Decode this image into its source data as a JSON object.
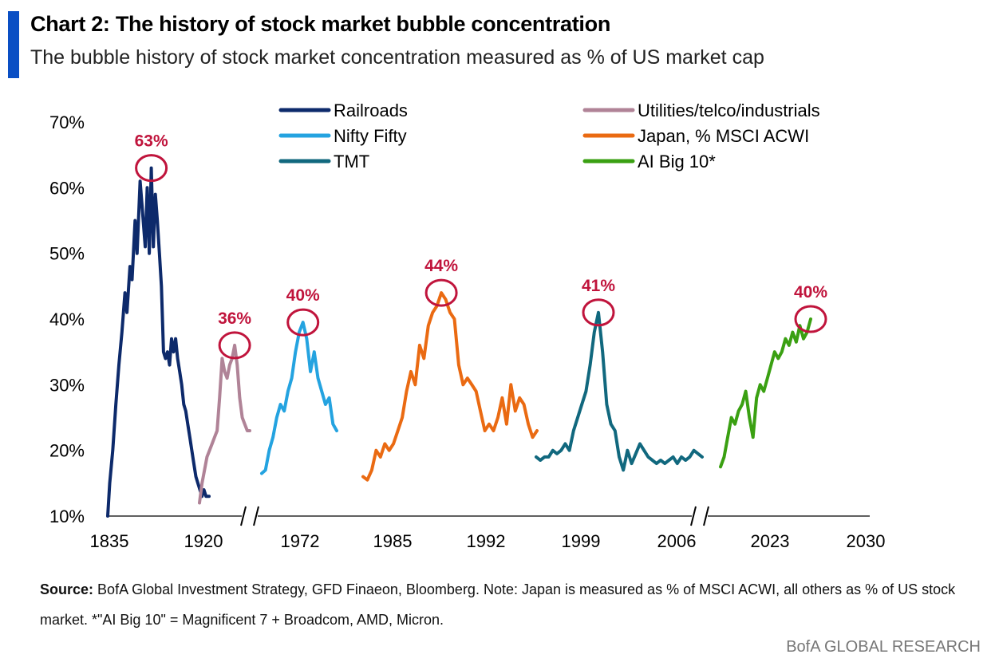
{
  "header": {
    "title": "Chart 2: The history of stock market bubble concentration",
    "subtitle": "The bubble history of stock market concentration measured as % of US market cap"
  },
  "footer": {
    "source_label": "Source:",
    "source_text": "BofA Global Investment Strategy, GFD Finaeon, Bloomberg. Note: Japan is measured as % of MSCI ACWI, all others as % of US stock market. *\"AI Big 10\" = Magnificent 7 + Broadcom, AMD, Micron.",
    "brand": "BofA GLOBAL RESEARCH"
  },
  "chart_data": {
    "type": "line",
    "ylim": [
      10,
      70
    ],
    "y_ticks": [
      "10%",
      "20%",
      "30%",
      "40%",
      "50%",
      "60%",
      "70%"
    ],
    "x_ticks": [
      "1835",
      "1920",
      "1972",
      "1985",
      "1992",
      "1999",
      "2006",
      "2023",
      "2030"
    ],
    "axis_breaks": 2,
    "grid": false,
    "legend_position": "top",
    "peak_color": "#c0143c",
    "series": [
      {
        "name": "Railroads",
        "color": "#0d2a6b",
        "x": [
          0,
          0.02,
          0.05,
          0.08,
          0.11,
          0.14,
          0.17,
          0.19,
          0.22,
          0.24,
          0.27,
          0.29,
          0.32,
          0.34,
          0.37,
          0.39,
          0.41,
          0.43,
          0.45,
          0.47,
          0.49,
          0.51,
          0.53,
          0.55,
          0.57,
          0.59,
          0.61,
          0.63,
          0.65,
          0.67,
          0.69,
          0.71,
          0.73,
          0.75,
          0.77,
          0.79,
          0.81,
          0.83,
          0.85,
          0.87,
          0.89,
          0.91,
          0.93,
          0.95,
          0.97,
          1
        ],
        "y": [
          10,
          15,
          20,
          27,
          33,
          38,
          44,
          41,
          48,
          46,
          55,
          50,
          61,
          57,
          51,
          60,
          50,
          63,
          51,
          59,
          55,
          50,
          45,
          35,
          34,
          35,
          33,
          37,
          35,
          37,
          34,
          32,
          30,
          27,
          26,
          24,
          22,
          20,
          18,
          16,
          15,
          14,
          13,
          14,
          13,
          13
        ]
      },
      {
        "name": "Utilities/telco/industrials",
        "color": "#b08397",
        "x": [
          0,
          0.05,
          0.1,
          0.15,
          0.2,
          0.25,
          0.3,
          0.35,
          0.4,
          0.45,
          0.5,
          0.55,
          0.6,
          0.65,
          0.7,
          0.75,
          0.8,
          0.85,
          0.9,
          0.95,
          1
        ],
        "y": [
          12,
          15,
          17,
          19,
          20,
          21,
          22,
          23,
          28,
          34,
          32,
          31,
          33,
          34,
          36,
          33,
          28,
          25,
          24,
          23,
          23
        ]
      },
      {
        "name": "Nifty Fifty",
        "color": "#24a3e0",
        "x": [
          0,
          0.05,
          0.1,
          0.15,
          0.2,
          0.25,
          0.3,
          0.35,
          0.4,
          0.45,
          0.5,
          0.55,
          0.6,
          0.65,
          0.7,
          0.75,
          0.8,
          0.85,
          0.9,
          0.95,
          1
        ],
        "y": [
          16.5,
          17,
          20,
          22,
          25,
          27,
          26,
          29,
          31,
          35,
          38,
          39.5,
          37,
          32,
          35,
          31,
          29,
          27,
          28,
          24,
          23
        ]
      },
      {
        "name": "Japan, % MSCI ACWI",
        "color": "#ea6a12",
        "x": [
          0,
          0.025,
          0.05,
          0.075,
          0.1,
          0.125,
          0.15,
          0.175,
          0.2,
          0.225,
          0.25,
          0.275,
          0.3,
          0.325,
          0.35,
          0.375,
          0.4,
          0.425,
          0.45,
          0.475,
          0.5,
          0.525,
          0.55,
          0.575,
          0.6,
          0.625,
          0.65,
          0.675,
          0.7,
          0.725,
          0.75,
          0.775,
          0.8,
          0.825,
          0.85,
          0.875,
          0.9,
          0.925,
          0.95,
          0.975,
          1
        ],
        "y": [
          16,
          15.5,
          17,
          20,
          19,
          21,
          20,
          21,
          23,
          25,
          29,
          32,
          30,
          36,
          34,
          39,
          41,
          42,
          44,
          43,
          41,
          40,
          33,
          30,
          31,
          30,
          29,
          26,
          23,
          24,
          23,
          25,
          28,
          24,
          30,
          26,
          28,
          27,
          24,
          22,
          23
        ]
      },
      {
        "name": "TMT",
        "color": "#11687e",
        "x": [
          0,
          0.025,
          0.05,
          0.075,
          0.1,
          0.125,
          0.15,
          0.175,
          0.2,
          0.225,
          0.25,
          0.275,
          0.3,
          0.325,
          0.35,
          0.375,
          0.4,
          0.425,
          0.45,
          0.475,
          0.5,
          0.525,
          0.55,
          0.575,
          0.6,
          0.625,
          0.65,
          0.675,
          0.7,
          0.725,
          0.75,
          0.775,
          0.8,
          0.825,
          0.85,
          0.875,
          0.9,
          0.925,
          0.95,
          0.975,
          1
        ],
        "y": [
          19,
          18.5,
          19,
          19,
          20,
          19.5,
          20,
          21,
          20,
          23,
          25,
          27,
          29,
          33,
          38,
          41,
          35,
          27,
          24,
          23,
          19,
          17,
          20,
          18,
          19.5,
          21,
          20,
          19,
          18.5,
          18,
          18.5,
          18,
          18.5,
          19,
          18,
          19,
          18.5,
          19,
          20,
          19.5,
          19
        ]
      },
      {
        "name": "AI Big 10*",
        "color": "#3aa012",
        "x": [
          0,
          0.04,
          0.08,
          0.12,
          0.16,
          0.2,
          0.24,
          0.28,
          0.32,
          0.36,
          0.4,
          0.44,
          0.48,
          0.52,
          0.56,
          0.6,
          0.64,
          0.68,
          0.72,
          0.76,
          0.8,
          0.84,
          0.88,
          0.92,
          0.96,
          1
        ],
        "y": [
          17.5,
          19,
          22,
          25,
          24,
          26,
          27,
          29,
          25,
          22,
          28,
          30,
          29,
          31,
          33,
          35,
          34,
          35,
          37,
          36,
          38,
          36.5,
          39,
          37,
          38,
          40
        ]
      }
    ],
    "peaks": [
      {
        "label": "63%",
        "series": "Railroads",
        "value": 63
      },
      {
        "label": "36%",
        "series": "Utilities/telco/industrials",
        "value": 36
      },
      {
        "label": "40%",
        "series": "Nifty Fifty",
        "value": 39.5
      },
      {
        "label": "44%",
        "series": "Japan, % MSCI ACWI",
        "value": 44
      },
      {
        "label": "41%",
        "series": "TMT",
        "value": 41
      },
      {
        "label": "40%",
        "series": "AI Big 10*",
        "value": 40
      }
    ]
  }
}
